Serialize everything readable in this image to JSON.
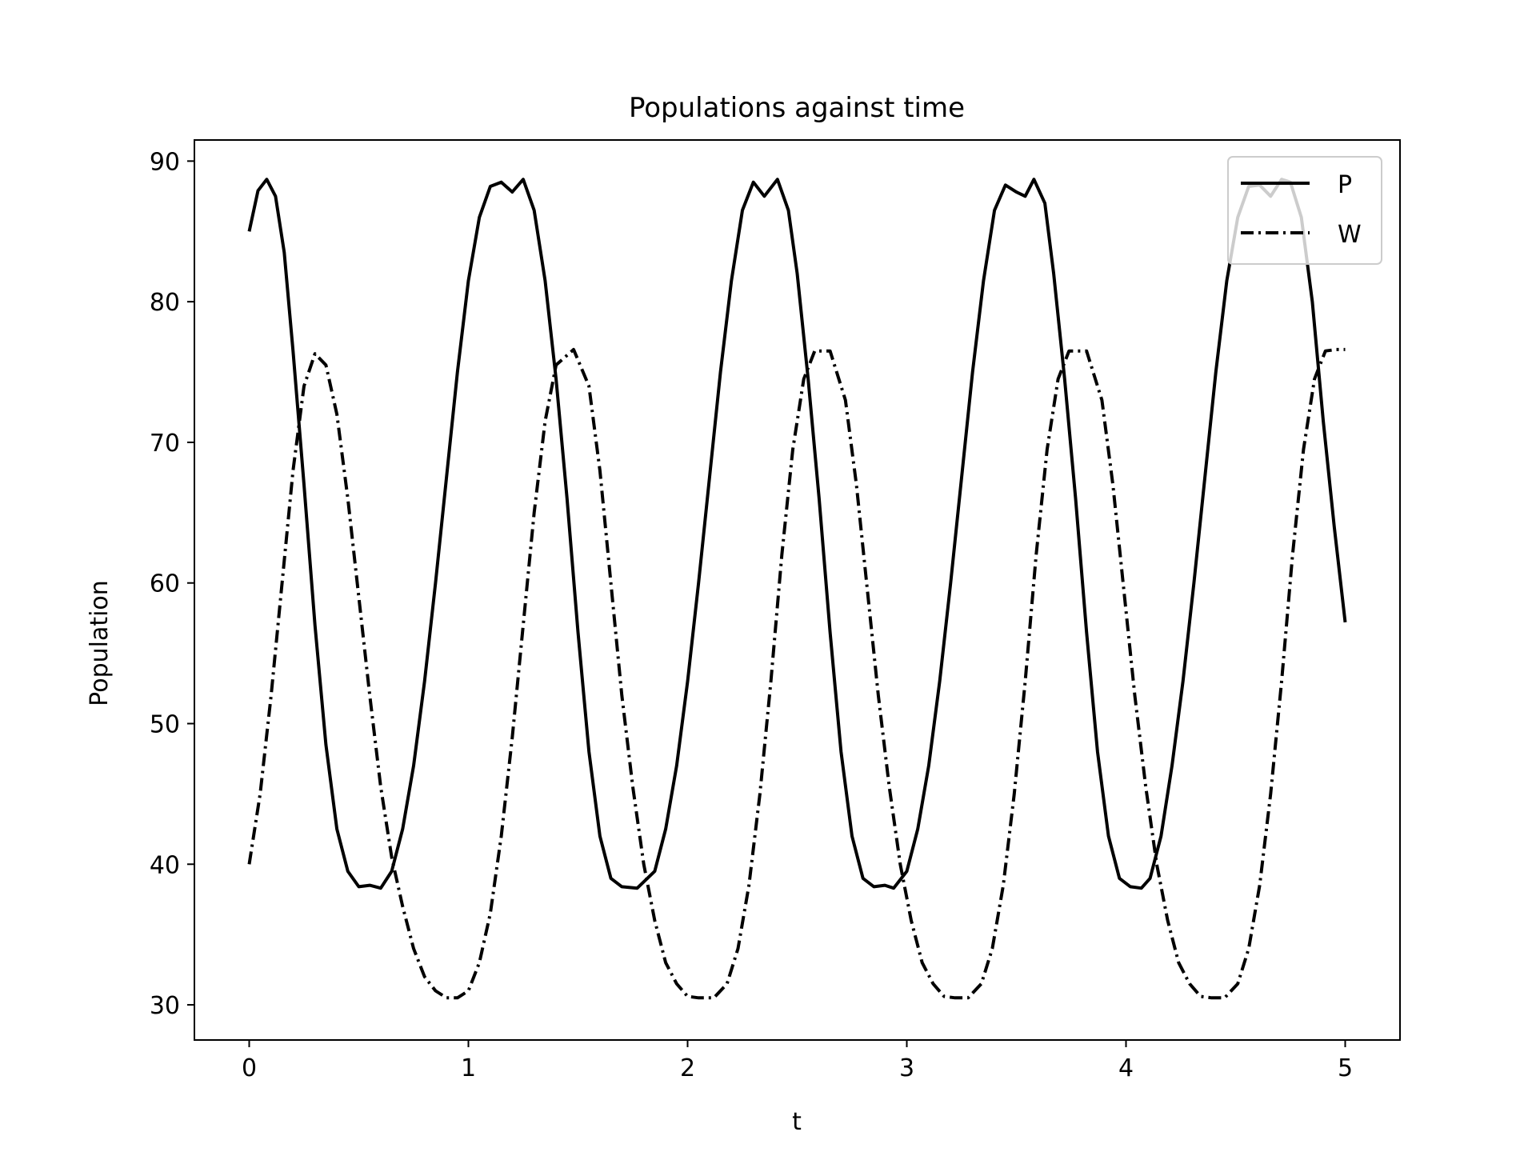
{
  "chart_data": {
    "type": "line",
    "title": "Populations against time",
    "xlabel": "t",
    "ylabel": "Population",
    "xlim": [
      -0.25,
      5.25
    ],
    "ylim": [
      27.5,
      91.5
    ],
    "xticks": [
      0,
      1,
      2,
      3,
      4,
      5
    ],
    "yticks": [
      30,
      40,
      50,
      60,
      70,
      80,
      90
    ],
    "grid": false,
    "legend": {
      "position": "top-right"
    },
    "colors": {
      "line": "#000000",
      "axes": "#000000",
      "legend_border": "#cccccc",
      "background": "#ffffff"
    },
    "series": [
      {
        "name": "P",
        "style": "solid",
        "x": [
          0,
          0.04,
          0.08,
          0.12,
          0.16,
          0.2,
          0.25,
          0.3,
          0.35,
          0.4,
          0.45,
          0.5,
          0.55,
          0.6,
          0.65,
          0.7,
          0.75,
          0.8,
          0.85,
          0.9,
          0.95,
          1.0,
          1.05,
          1.1,
          1.15,
          1.2,
          1.25,
          1.3,
          1.35,
          1.4,
          1.45,
          1.5,
          1.55,
          1.6,
          1.65,
          1.7,
          1.77,
          1.85,
          1.9,
          1.95,
          2.0,
          2.05,
          2.1,
          2.15,
          2.2,
          2.25,
          2.3,
          2.35,
          2.41,
          2.46,
          2.5,
          2.55,
          2.6,
          2.65,
          2.7,
          2.75,
          2.8,
          2.85,
          2.9,
          2.94,
          3.0,
          3.05,
          3.1,
          3.15,
          3.2,
          3.25,
          3.3,
          3.35,
          3.4,
          3.45,
          3.5,
          3.54,
          3.58,
          3.63,
          3.67,
          3.72,
          3.77,
          3.82,
          3.87,
          3.92,
          3.97,
          4.02,
          4.07,
          4.11,
          4.16,
          4.21,
          4.26,
          4.31,
          4.36,
          4.41,
          4.46,
          4.51,
          4.56,
          4.61,
          4.66,
          4.71,
          4.75,
          4.8,
          4.85,
          4.9,
          4.95,
          5.0
        ],
        "y": [
          85,
          87.9,
          88.7,
          87.5,
          83.5,
          76.5,
          67,
          57,
          48.5,
          42.5,
          39.5,
          38.4,
          38.5,
          38.3,
          39.5,
          42.5,
          47,
          53,
          60,
          67.5,
          75,
          81.5,
          86,
          88.2,
          88.5,
          87.8,
          88.7,
          86.5,
          81.5,
          74.5,
          66,
          56.5,
          48,
          42,
          39,
          38.4,
          38.3,
          39.5,
          42.5,
          47,
          53,
          60,
          67.5,
          75,
          81.5,
          86.5,
          88.5,
          87.5,
          88.7,
          86.5,
          82,
          74.5,
          66,
          56.5,
          48,
          42,
          39,
          38.4,
          38.5,
          38.3,
          39.5,
          42.5,
          47,
          53,
          60,
          67.5,
          75,
          81.5,
          86.5,
          88.3,
          87.8,
          87.5,
          88.7,
          87,
          82,
          74.5,
          66,
          56.5,
          48,
          42,
          39,
          38.4,
          38.3,
          39,
          42,
          47,
          53,
          60,
          67.5,
          75,
          81.5,
          86,
          88.2,
          88.3,
          87.5,
          88.7,
          88.5,
          86,
          80,
          71.5,
          64,
          57.2
        ]
      },
      {
        "name": "W",
        "style": "dashdot",
        "x": [
          0,
          0.05,
          0.1,
          0.15,
          0.2,
          0.25,
          0.3,
          0.35,
          0.4,
          0.45,
          0.5,
          0.55,
          0.6,
          0.65,
          0.7,
          0.75,
          0.8,
          0.85,
          0.9,
          0.95,
          1.0,
          1.05,
          1.1,
          1.15,
          1.2,
          1.25,
          1.3,
          1.35,
          1.4,
          1.48,
          1.55,
          1.6,
          1.65,
          1.7,
          1.75,
          1.8,
          1.85,
          1.9,
          1.95,
          2.0,
          2.05,
          2.12,
          2.18,
          2.23,
          2.28,
          2.33,
          2.38,
          2.43,
          2.48,
          2.53,
          2.58,
          2.65,
          2.72,
          2.77,
          2.82,
          2.87,
          2.92,
          2.97,
          3.02,
          3.07,
          3.12,
          3.17,
          3.22,
          3.28,
          3.34,
          3.39,
          3.44,
          3.49,
          3.54,
          3.59,
          3.64,
          3.69,
          3.74,
          3.82,
          3.89,
          3.94,
          3.99,
          4.04,
          4.09,
          4.14,
          4.19,
          4.24,
          4.29,
          4.34,
          4.39,
          4.45,
          4.51,
          4.56,
          4.61,
          4.66,
          4.71,
          4.76,
          4.81,
          4.86,
          4.91,
          4.96,
          5.0
        ],
        "y": [
          40,
          45,
          52,
          60,
          68,
          74,
          76.3,
          75.5,
          72,
          66,
          59,
          52,
          45.5,
          40.5,
          37,
          34,
          32,
          31,
          30.5,
          30.5,
          31,
          33,
          36.5,
          42,
          49,
          57,
          65,
          71.5,
          75.5,
          76.6,
          74,
          68,
          60,
          52,
          45.5,
          40,
          36,
          33,
          31.5,
          30.6,
          30.5,
          30.5,
          31.5,
          34,
          38.5,
          45,
          53,
          62,
          69.5,
          74.5,
          76.5,
          76.5,
          73,
          67,
          59.5,
          52,
          45.5,
          40,
          36,
          33,
          31.5,
          30.6,
          30.5,
          30.5,
          31.5,
          34,
          38.5,
          45,
          53,
          62,
          69.5,
          74.5,
          76.5,
          76.5,
          73,
          67,
          59.5,
          52,
          45.5,
          40,
          36,
          33,
          31.5,
          30.6,
          30.5,
          30.5,
          31.5,
          34,
          38.5,
          45,
          53,
          62,
          69.5,
          74.5,
          76.5,
          76.6,
          76.6
        ]
      }
    ]
  }
}
